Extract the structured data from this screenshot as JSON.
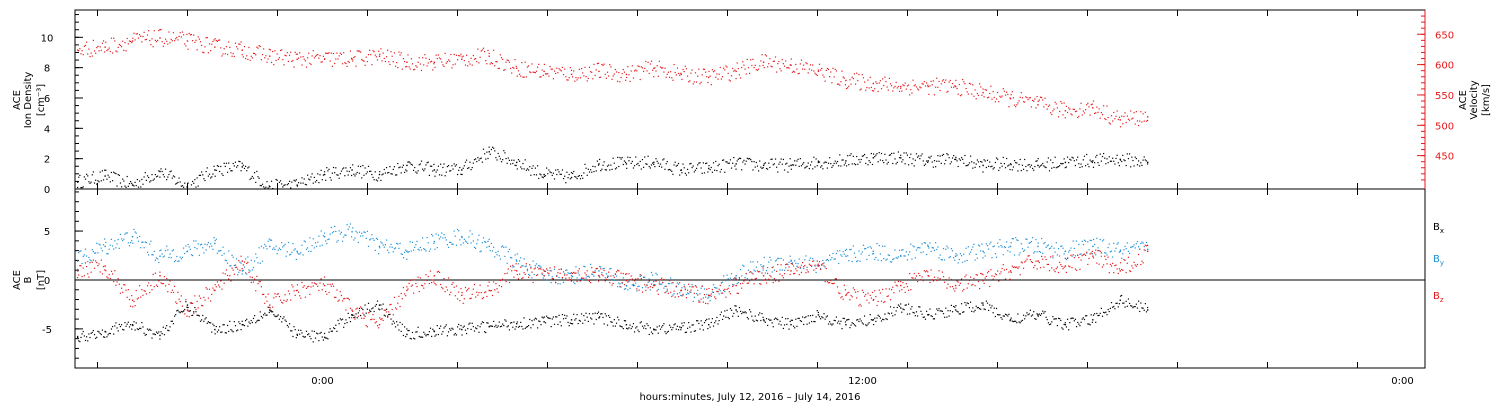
{
  "chart_data": [
    {
      "type": "scatter",
      "panel": "top",
      "ylabel_left_lines": [
        "ACE",
        "Ion Density",
        "[cm⁻³]"
      ],
      "ylabel_right_lines": [
        "ACE",
        "Velocity",
        "[km/s]"
      ],
      "ylim_left": [
        0,
        11.8
      ],
      "ylim_right": [
        395,
        690
      ],
      "left_ticks": [
        "0",
        "2",
        "4",
        "6",
        "8",
        "10"
      ],
      "left_tick_values": [
        0,
        2,
        4,
        6,
        8,
        10
      ],
      "right_ticks": [
        "450",
        "500",
        "550",
        "600",
        "650"
      ],
      "right_tick_values": [
        450,
        500,
        550,
        600,
        650
      ],
      "right_axis_color": "#e41a1c",
      "series": [
        {
          "color": "#000000",
          "axis": "left",
          "x": [
            0,
            1.5,
            3,
            4.5,
            6,
            7.5,
            9,
            10.5,
            12,
            13.5,
            15,
            16.5,
            18,
            19.5,
            21,
            22.5,
            24,
            25.5,
            27,
            28.5,
            30,
            31.5,
            33,
            34.5,
            36,
            37.5,
            39,
            40.5,
            42,
            43.5,
            45,
            46.5,
            48,
            49.5,
            51,
            52.5,
            54,
            55.5,
            57,
            58.5
          ],
          "y": [
            0.5,
            0.9,
            0.3,
            1.2,
            0.2,
            1.3,
            1.5,
            0.2,
            0.3,
            1.0,
            1.3,
            1.0,
            1.6,
            1.3,
            1.3,
            2.5,
            1.8,
            1.0,
            0.8,
            1.7,
            1.7,
            1.8,
            1.3,
            1.4,
            1.7,
            1.6,
            1.6,
            1.8,
            1.9,
            2.1,
            2.1,
            1.9,
            2.0,
            1.6,
            1.7,
            1.6,
            1.8,
            1.9,
            2.0,
            1.8
          ]
        },
        {
          "color": "#e41a1c",
          "axis": "right",
          "x": [
            0,
            1.5,
            3,
            4.5,
            6,
            7.5,
            9,
            10.5,
            12,
            13.5,
            15,
            16.5,
            18,
            19.5,
            21,
            22.5,
            24,
            25.5,
            27,
            28.5,
            30,
            31.5,
            33,
            34.5,
            36,
            37.5,
            39,
            40.5,
            42,
            43.5,
            45,
            46.5,
            48,
            49.5,
            51,
            52.5,
            54,
            55.5,
            57,
            58.5
          ],
          "y": [
            625,
            630,
            640,
            645,
            640,
            630,
            625,
            615,
            610,
            610,
            610,
            615,
            605,
            605,
            610,
            615,
            595,
            590,
            585,
            590,
            585,
            595,
            585,
            580,
            590,
            605,
            600,
            590,
            575,
            570,
            565,
            565,
            565,
            555,
            545,
            535,
            525,
            530,
            510,
            515
          ]
        }
      ]
    },
    {
      "type": "scatter",
      "panel": "bottom",
      "ylabel_lines": [
        "ACE",
        "B",
        "[nT]"
      ],
      "ylim": [
        -9,
        9.3
      ],
      "ticks": [
        "-5",
        "0",
        "5"
      ],
      "tick_values": [
        -5,
        0,
        5
      ],
      "zero_line": true,
      "legend_placement": "right",
      "x_tick_labels": [
        "0:00",
        "12:00",
        "0:00"
      ],
      "x_tick_hours": [
        24,
        36,
        48
      ],
      "x_range_hours": [
        18.5,
        48.5
      ],
      "series": [
        {
          "name": "Bx",
          "color": "#000000",
          "x": [
            0,
            1.5,
            3,
            4.5,
            6,
            7.5,
            9,
            10.5,
            12,
            13.5,
            15,
            16.5,
            18,
            19.5,
            21,
            22.5,
            24,
            25.5,
            27,
            28.5,
            30,
            31.5,
            33,
            34.5,
            36,
            37.5,
            39,
            40.5,
            42,
            43.5,
            45,
            46.5,
            48,
            49.5,
            51,
            52.5,
            54,
            55.5,
            57,
            58.5
          ],
          "y": [
            -5.8,
            -5.2,
            -4.5,
            -5.6,
            -2.5,
            -5.0,
            -4.5,
            -3.0,
            -5.5,
            -5.8,
            -3.5,
            -2.5,
            -5.5,
            -5.2,
            -5.0,
            -4.7,
            -4.4,
            -4.2,
            -4.0,
            -3.8,
            -4.5,
            -5.0,
            -4.8,
            -4.5,
            -3.0,
            -4.0,
            -4.5,
            -3.5,
            -4.5,
            -4.0,
            -2.8,
            -3.5,
            -3.0,
            -2.5,
            -4.0,
            -3.5,
            -4.5,
            -4.0,
            -2.0,
            -3.0
          ]
        },
        {
          "name": "By",
          "color": "#1e90d6",
          "x": [
            0,
            1.5,
            3,
            4.5,
            6,
            7.5,
            9,
            10.5,
            12,
            13.5,
            15,
            16.5,
            18,
            19.5,
            21,
            22.5,
            24,
            25.5,
            27,
            28.5,
            30,
            31.5,
            33,
            34.5,
            36,
            37.5,
            39,
            40.5,
            42,
            43.5,
            45,
            46.5,
            48,
            49.5,
            51,
            52.5,
            54,
            55.5,
            57,
            58.5
          ],
          "y": [
            2.0,
            3.5,
            4.5,
            2.5,
            3.0,
            3.8,
            1.0,
            3.5,
            3.0,
            4.5,
            5.0,
            3.5,
            3.0,
            4.0,
            4.5,
            3.5,
            2.0,
            0.5,
            0.5,
            1.0,
            -0.5,
            0.0,
            -1.0,
            -1.5,
            0.5,
            1.5,
            2.0,
            1.5,
            2.5,
            3.0,
            2.5,
            3.5,
            2.5,
            3.0,
            3.5,
            3.5,
            3.0,
            3.5,
            3.0,
            3.2
          ]
        },
        {
          "name": "Bz",
          "color": "#e41a1c",
          "x": [
            0,
            1.5,
            3,
            4.5,
            6,
            7.5,
            9,
            10.5,
            12,
            13.5,
            15,
            16.5,
            18,
            19.5,
            21,
            22.5,
            24,
            25.5,
            27,
            28.5,
            30,
            31.5,
            33,
            34.5,
            36,
            37.5,
            39,
            40.5,
            42,
            43.5,
            45,
            46.5,
            48,
            49.5,
            51,
            52.5,
            54,
            55.5,
            57,
            58.5
          ],
          "y": [
            1.0,
            1.5,
            -2.0,
            0.5,
            -3.0,
            -1.0,
            2.0,
            -2.5,
            -1.0,
            -0.5,
            -3.0,
            -4.5,
            -1.0,
            0.5,
            -1.5,
            -1.0,
            1.0,
            0.5,
            0.8,
            0.5,
            0.0,
            -0.5,
            -1.0,
            -1.5,
            -0.5,
            0.5,
            1.0,
            1.5,
            -1.5,
            -2.0,
            -0.5,
            0.5,
            -0.5,
            0.0,
            1.0,
            2.0,
            1.5,
            2.5,
            1.0,
            3.0
          ]
        }
      ]
    }
  ],
  "legend": {
    "bx": {
      "base": "B",
      "sub": "x",
      "color": "#000000"
    },
    "by": {
      "base": "B",
      "sub": "y",
      "color": "#1e90d6"
    },
    "bz": {
      "base": "B",
      "sub": "z",
      "color": "#e41a1c"
    }
  },
  "xlabel": "hours:minutes, July 12, 2016 – July 14, 2016"
}
